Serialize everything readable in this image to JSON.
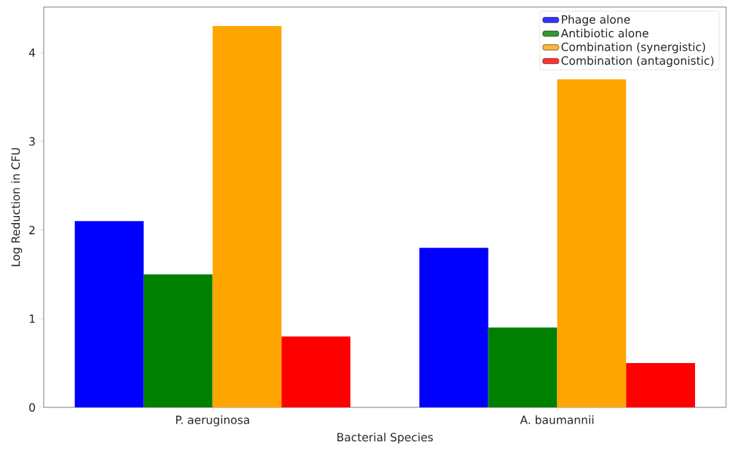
{
  "chart_data": {
    "type": "bar",
    "xlabel": "Bacterial Species",
    "ylabel": "Log Reduction in CFU",
    "categories": [
      "P. aeruginosa",
      "A. baumannii"
    ],
    "series": [
      {
        "name": "Phage alone",
        "color": "#0000ff",
        "values": [
          2.1,
          1.8
        ]
      },
      {
        "name": "Antibiotic alone",
        "color": "#008000",
        "values": [
          1.5,
          0.9
        ]
      },
      {
        "name": "Combination (synergistic)",
        "color": "#ffa500",
        "values": [
          4.3,
          3.7
        ]
      },
      {
        "name": "Combination (antagonistic)",
        "color": "#ff0000",
        "values": [
          0.8,
          0.5
        ]
      }
    ],
    "ylim": [
      0,
      4.515
    ],
    "yticks": [
      0,
      1,
      2,
      3,
      4
    ],
    "legend": "top right"
  }
}
